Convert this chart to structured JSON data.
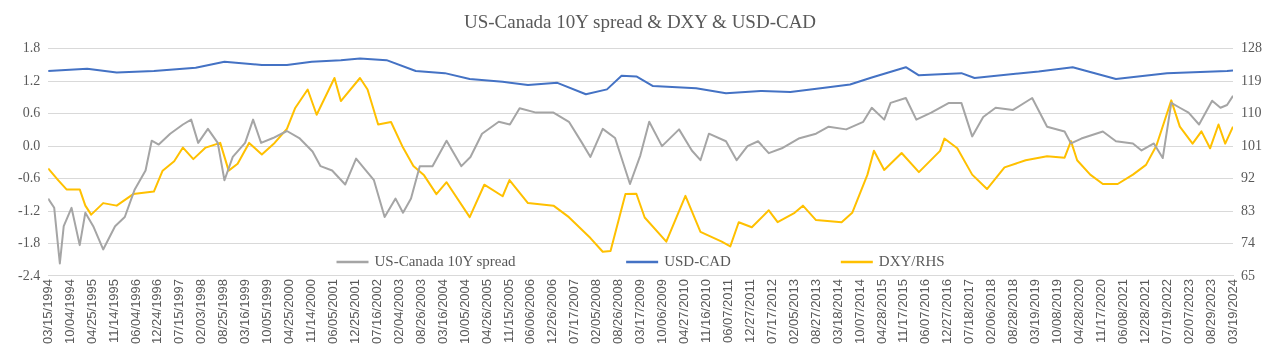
{
  "chart_data": {
    "type": "line",
    "title": "US-Canada 10Y spread & DXY & USD-CAD",
    "xlim": [
      "1994-03-15",
      "2024-03-19"
    ],
    "xticks": [
      {
        "value": "1994-03-15",
        "label": "03/15/1994"
      },
      {
        "value": "1994-10-04",
        "label": "10/04/1994"
      },
      {
        "value": "1995-04-25",
        "label": "04/25/1995"
      },
      {
        "value": "1995-11-14",
        "label": "11/14/1995"
      },
      {
        "value": "1996-06-04",
        "label": "06/04/1996"
      },
      {
        "value": "1996-12-24",
        "label": "12/24/1996"
      },
      {
        "value": "1997-07-15",
        "label": "07/15/1997"
      },
      {
        "value": "1998-02-03",
        "label": "02/03/1998"
      },
      {
        "value": "1998-08-25",
        "label": "08/25/1998"
      },
      {
        "value": "1999-03-16",
        "label": "03/16/1999"
      },
      {
        "value": "1999-10-05",
        "label": "10/05/1999"
      },
      {
        "value": "2000-04-25",
        "label": "04/25/2000"
      },
      {
        "value": "2000-11-14",
        "label": "11/14/2000"
      },
      {
        "value": "2001-06-05",
        "label": "06/05/2001"
      },
      {
        "value": "2001-12-25",
        "label": "12/25/2001"
      },
      {
        "value": "2002-07-16",
        "label": "07/16/2002"
      },
      {
        "value": "2003-02-04",
        "label": "02/04/2003"
      },
      {
        "value": "2003-08-26",
        "label": "08/26/2003"
      },
      {
        "value": "2004-03-16",
        "label": "03/16/2004"
      },
      {
        "value": "2004-10-05",
        "label": "10/05/2004"
      },
      {
        "value": "2005-04-26",
        "label": "04/26/2005"
      },
      {
        "value": "2005-11-15",
        "label": "11/15/2005"
      },
      {
        "value": "2006-06-06",
        "label": "06/06/2006"
      },
      {
        "value": "2006-12-26",
        "label": "12/26/2006"
      },
      {
        "value": "2007-07-17",
        "label": "07/17/2007"
      },
      {
        "value": "2008-02-05",
        "label": "02/05/2008"
      },
      {
        "value": "2008-08-26",
        "label": "08/26/2008"
      },
      {
        "value": "2009-03-17",
        "label": "03/17/2009"
      },
      {
        "value": "2009-10-06",
        "label": "10/06/2009"
      },
      {
        "value": "2010-04-27",
        "label": "04/27/2010"
      },
      {
        "value": "2010-11-16",
        "label": "11/16/2010"
      },
      {
        "value": "2011-06-07",
        "label": "06/07/2011"
      },
      {
        "value": "2011-12-27",
        "label": "12/27/2011"
      },
      {
        "value": "2012-07-17",
        "label": "07/17/2012"
      },
      {
        "value": "2013-02-05",
        "label": "02/05/2013"
      },
      {
        "value": "2013-08-27",
        "label": "08/27/2013"
      },
      {
        "value": "2014-03-18",
        "label": "03/18/2014"
      },
      {
        "value": "2014-10-07",
        "label": "10/07/2014"
      },
      {
        "value": "2015-04-28",
        "label": "04/28/2015"
      },
      {
        "value": "2015-11-17",
        "label": "11/17/2015"
      },
      {
        "value": "2016-06-07",
        "label": "06/07/2016"
      },
      {
        "value": "2016-12-27",
        "label": "12/27/2016"
      },
      {
        "value": "2017-07-18",
        "label": "07/18/2017"
      },
      {
        "value": "2018-02-06",
        "label": "02/06/2018"
      },
      {
        "value": "2018-08-28",
        "label": "08/28/2018"
      },
      {
        "value": "2019-03-19",
        "label": "03/19/2019"
      },
      {
        "value": "2019-10-08",
        "label": "10/08/2019"
      },
      {
        "value": "2020-04-28",
        "label": "04/28/2020"
      },
      {
        "value": "2020-11-17",
        "label": "11/17/2020"
      },
      {
        "value": "2021-06-08",
        "label": "06/08/2021"
      },
      {
        "value": "2021-12-28",
        "label": "12/28/2021"
      },
      {
        "value": "2022-07-19",
        "label": "07/19/2022"
      },
      {
        "value": "2023-02-07",
        "label": "02/07/2023"
      },
      {
        "value": "2023-08-29",
        "label": "08/29/2023"
      },
      {
        "value": "2024-03-19",
        "label": "03/19/2024"
      }
    ],
    "ylim": [
      -2.4,
      1.8
    ],
    "yticks": [
      -2.4,
      -1.8,
      -1.2,
      -0.6,
      {
        "value": 0,
        "label": "0.0"
      },
      0.6,
      1.2,
      1.8
    ],
    "y2lim": [
      65,
      128
    ],
    "y2ticks": [
      65,
      74,
      83,
      92,
      101,
      110,
      119,
      128
    ],
    "grid": "y",
    "legend": "bottom",
    "marker": "none",
    "line_style": "solid",
    "series": [
      {
        "name": "US-Canada 10Y spread",
        "color": "#a5a5a5",
        "x": [
          "1994-03-15",
          "1994-05-10",
          "1994-07-01",
          "1994-08-06",
          "1994-10-17",
          "1995-01-01",
          "1995-02-22",
          "1995-05-06",
          "1995-08-06",
          "1995-11-24",
          "1996-02-22",
          "1996-05-24",
          "1996-09-01",
          "1996-10-28",
          "1997-01-01",
          "1997-04-17",
          "1997-08-13",
          "1997-10-28",
          "1998-01-01",
          "1998-04-01",
          "1998-07-01",
          "1998-09-01",
          "1998-11-17",
          "1999-03-11",
          "1999-05-24",
          "1999-08-06",
          "1999-11-24",
          "2000-04-01",
          "2000-07-24",
          "2000-11-24",
          "2001-02-06",
          "2001-05-24",
          "2001-09-22",
          "2002-01-01",
          "2002-04-01",
          "2002-06-15",
          "2002-09-22",
          "2003-01-01",
          "2003-03-11",
          "2003-05-24",
          "2003-08-13",
          "2003-12-09",
          "2004-04-17",
          "2004-09-01",
          "2004-11-24",
          "2005-03-11",
          "2005-08-13",
          "2005-11-24",
          "2006-02-22",
          "2006-07-24",
          "2007-01-01",
          "2007-05-24",
          "2007-09-22",
          "2007-12-09",
          "2008-04-01",
          "2008-07-24",
          "2008-12-09",
          "2009-03-15",
          "2009-06-05",
          "2009-10-01",
          "2010-03-08",
          "2010-07-04",
          "2010-09-22",
          "2010-12-09",
          "2011-05-16",
          "2011-08-23",
          "2011-12-01",
          "2012-03-08",
          "2012-06-15",
          "2012-10-14",
          "2013-03-18",
          "2013-08-26",
          "2013-12-21",
          "2014-06-01",
          "2014-11-06",
          "2015-01-24",
          "2015-05-19",
          "2015-07-17",
          "2015-12-05",
          "2016-03-11",
          "2016-07-27",
          "2017-01-07",
          "2017-05-02",
          "2017-08-10",
          "2017-11-20",
          "2018-03-15",
          "2018-08-23",
          "2019-02-16",
          "2019-07-04",
          "2019-12-13",
          "2020-02-10",
          "2020-05-16",
          "2020-12-01",
          "2021-04-01",
          "2021-09-05",
          "2021-11-24",
          "2022-03-18",
          "2022-06-08",
          "2022-08-26",
          "2022-11-13",
          "2023-02-02",
          "2023-05-10",
          "2023-09-08",
          "2023-11-24",
          "2024-01-24",
          "2024-03-19"
        ],
        "values": [
          -0.97,
          -1.14,
          -2.17,
          -1.48,
          -1.14,
          -1.83,
          -1.23,
          -1.48,
          -1.91,
          -1.48,
          -1.31,
          -0.8,
          -0.45,
          0.1,
          0.03,
          0.23,
          0.4,
          0.49,
          0.06,
          0.32,
          0.06,
          -0.63,
          -0.2,
          0.06,
          0.49,
          0.06,
          0.15,
          0.28,
          0.15,
          -0.1,
          -0.37,
          -0.45,
          -0.71,
          -0.23,
          -0.45,
          -0.63,
          -1.31,
          -0.97,
          -1.23,
          -0.97,
          -0.37,
          -0.37,
          0.1,
          -0.37,
          -0.2,
          0.23,
          0.45,
          0.4,
          0.7,
          0.62,
          0.62,
          0.45,
          0.06,
          -0.2,
          0.32,
          0.15,
          -0.7,
          -0.17,
          0.45,
          0.0,
          0.31,
          -0.08,
          -0.26,
          0.23,
          0.09,
          -0.26,
          0.0,
          0.09,
          -0.13,
          -0.04,
          0.14,
          0.23,
          0.36,
          0.31,
          0.45,
          0.71,
          0.49,
          0.8,
          0.89,
          0.49,
          0.62,
          0.8,
          0.8,
          0.18,
          0.54,
          0.71,
          0.67,
          0.89,
          0.36,
          0.27,
          0.05,
          0.14,
          0.27,
          0.09,
          0.05,
          -0.08,
          0.05,
          -0.22,
          0.8,
          0.71,
          0.62,
          0.4,
          0.84,
          0.71,
          0.76,
          0.93
        ]
      },
      {
        "name": "USD-CAD",
        "color": "#4472c4",
        "x": [
          "1994-03-15",
          "1995-03-11",
          "1995-12-09",
          "1996-11-17",
          "1997-12-09",
          "1998-09-01",
          "1999-08-13",
          "2000-04-01",
          "2000-11-17",
          "2001-08-13",
          "2002-02-06",
          "2002-10-10",
          "2003-07-07",
          "2004-04-01",
          "2004-11-17",
          "2005-09-18",
          "2006-05-10",
          "2007-02-06",
          "2007-10-28",
          "2008-05-10",
          "2008-09-22",
          "2009-02-06",
          "2009-07-10",
          "2010-08-13",
          "2011-05-16",
          "2012-04-01",
          "2013-01-01",
          "2013-11-13",
          "2014-07-07",
          "2015-01-24",
          "2015-12-05",
          "2016-04-04",
          "2017-05-02",
          "2017-09-01",
          "2019-04-17",
          "2020-02-26",
          "2021-04-01",
          "2022-07-17",
          "2024-01-24",
          "2024-03-19"
        ],
        "values": [
          1.39,
          1.43,
          1.36,
          1.39,
          1.45,
          1.56,
          1.5,
          1.5,
          1.56,
          1.59,
          1.62,
          1.59,
          1.39,
          1.35,
          1.24,
          1.19,
          1.13,
          1.17,
          0.96,
          1.05,
          1.3,
          1.29,
          1.11,
          1.07,
          0.98,
          1.02,
          1.0,
          1.08,
          1.14,
          1.27,
          1.46,
          1.31,
          1.35,
          1.26,
          1.38,
          1.46,
          1.24,
          1.35,
          1.39,
          1.4
        ]
      },
      {
        "name": "DXY/RHS",
        "color": "#ffc000",
        "axis": "y2",
        "x": [
          "1994-03-15",
          "1994-06-15",
          "1994-09-01",
          "1995-01-01",
          "1995-02-22",
          "1995-04-17",
          "1995-08-06",
          "1995-12-09",
          "1996-05-10",
          "1996-11-17",
          "1997-02-06",
          "1997-05-24",
          "1997-08-13",
          "1997-11-17",
          "1998-03-11",
          "1998-07-24",
          "1998-10-10",
          "1999-01-01",
          "1999-04-17",
          "1999-08-13",
          "1999-12-09",
          "2000-04-01",
          "2000-06-15",
          "2000-10-10",
          "2001-01-01",
          "2001-06-15",
          "2001-08-13",
          "2002-02-06",
          "2002-04-17",
          "2002-07-24",
          "2002-11-20",
          "2003-03-11",
          "2003-06-15",
          "2003-09-22",
          "2004-01-14",
          "2004-04-17",
          "2004-11-17",
          "2005-04-01",
          "2005-09-18",
          "2005-11-20",
          "2006-05-10",
          "2007-01-01",
          "2007-05-24",
          "2007-12-09",
          "2008-04-01",
          "2008-06-12",
          "2008-10-28",
          "2009-02-06",
          "2009-04-24",
          "2009-11-10",
          "2010-05-06",
          "2010-09-22",
          "2011-04-07",
          "2011-06-25",
          "2011-09-11",
          "2012-01-10",
          "2012-06-15",
          "2012-09-05",
          "2013-02-09",
          "2013-04-27",
          "2013-08-26",
          "2014-04-20",
          "2014-07-27",
          "2014-12-15",
          "2015-02-13",
          "2015-05-19",
          "2015-10-27",
          "2016-04-04",
          "2016-10-17",
          "2016-11-26",
          "2017-03-25",
          "2017-08-10",
          "2017-12-25",
          "2018-06-05",
          "2018-12-18",
          "2019-07-04",
          "2019-12-13",
          "2020-02-10",
          "2020-04-07",
          "2020-08-06",
          "2020-12-01",
          "2021-04-17",
          "2021-09-05",
          "2022-01-04",
          "2022-04-10",
          "2022-08-26",
          "2022-11-13",
          "2023-03-11",
          "2023-06-01",
          "2023-08-20",
          "2023-11-06",
          "2024-01-07",
          "2024-03-19"
        ],
        "values": [
          94.8,
          91.6,
          89.0,
          89.0,
          84.5,
          82.0,
          85.2,
          84.5,
          87.7,
          88.4,
          94.2,
          96.8,
          100.6,
          97.4,
          100.6,
          101.9,
          94.2,
          96.1,
          101.9,
          98.7,
          101.9,
          105.8,
          111.5,
          116.7,
          109.7,
          119.9,
          113.5,
          119.9,
          116.7,
          107.0,
          107.7,
          100.6,
          95.5,
          92.9,
          87.7,
          91.0,
          81.3,
          90.3,
          87.1,
          91.6,
          85.2,
          84.5,
          81.3,
          75.5,
          71.7,
          71.9,
          87.7,
          87.8,
          81.2,
          74.5,
          87.2,
          77.2,
          74.5,
          73.2,
          79.9,
          78.5,
          83.2,
          79.9,
          82.5,
          84.5,
          80.5,
          79.9,
          82.5,
          93.1,
          99.7,
          94.4,
          99.1,
          93.8,
          99.7,
          103.1,
          100.4,
          93.1,
          89.1,
          95.1,
          97.1,
          98.2,
          97.8,
          102.4,
          97.1,
          93.1,
          90.5,
          90.5,
          93.1,
          95.8,
          101.1,
          113.7,
          106.4,
          101.7,
          105.1,
          100.4,
          107.0,
          101.7,
          106.4
        ]
      }
    ]
  }
}
